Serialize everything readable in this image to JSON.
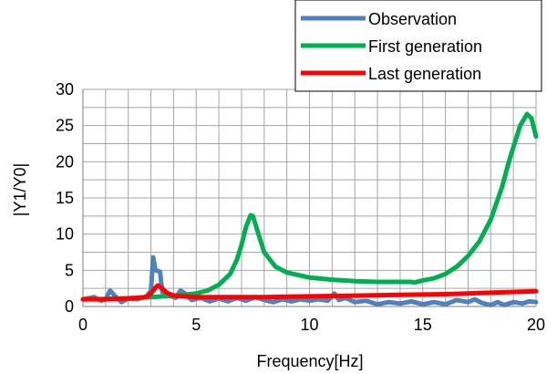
{
  "chart_data": {
    "type": "line",
    "xlabel": "Frequency[Hz]",
    "ylabel": "|Y1/Y0|",
    "xlim": [
      0,
      20
    ],
    "ylim": [
      0,
      30
    ],
    "xticks": [
      0,
      5,
      10,
      15,
      20
    ],
    "yticks": [
      0,
      5,
      10,
      15,
      20,
      25,
      30
    ],
    "grid": true,
    "legend_position": "top-right",
    "series": [
      {
        "name": "Observation",
        "color": "#4f81bd",
        "points": [
          [
            0,
            1.0
          ],
          [
            0.5,
            1.3
          ],
          [
            0.8,
            0.8
          ],
          [
            1.0,
            1.0
          ],
          [
            1.2,
            2.2
          ],
          [
            1.4,
            1.5
          ],
          [
            1.7,
            0.6
          ],
          [
            2.0,
            1.1
          ],
          [
            2.4,
            1.0
          ],
          [
            2.8,
            1.4
          ],
          [
            3.0,
            2.2
          ],
          [
            3.1,
            6.8
          ],
          [
            3.2,
            5.0
          ],
          [
            3.4,
            4.8
          ],
          [
            3.5,
            2.0
          ],
          [
            3.8,
            1.5
          ],
          [
            4.1,
            1.2
          ],
          [
            4.3,
            2.2
          ],
          [
            4.5,
            1.8
          ],
          [
            4.8,
            0.9
          ],
          [
            5.2,
            1.2
          ],
          [
            5.6,
            0.7
          ],
          [
            6.0,
            1.1
          ],
          [
            6.4,
            0.7
          ],
          [
            6.8,
            1.2
          ],
          [
            7.2,
            0.8
          ],
          [
            7.6,
            1.3
          ],
          [
            8.0,
            0.9
          ],
          [
            8.4,
            0.6
          ],
          [
            8.8,
            1.0
          ],
          [
            9.2,
            0.7
          ],
          [
            9.6,
            1.0
          ],
          [
            10.0,
            0.8
          ],
          [
            10.4,
            1.0
          ],
          [
            10.8,
            0.8
          ],
          [
            11.1,
            1.8
          ],
          [
            11.3,
            0.9
          ],
          [
            11.6,
            1.2
          ],
          [
            12.0,
            0.6
          ],
          [
            12.5,
            0.8
          ],
          [
            13.0,
            0.3
          ],
          [
            13.5,
            0.6
          ],
          [
            14.0,
            0.4
          ],
          [
            14.5,
            0.7
          ],
          [
            15.0,
            0.3
          ],
          [
            15.5,
            0.6
          ],
          [
            16.0,
            0.3
          ],
          [
            16.5,
            0.9
          ],
          [
            17.0,
            0.6
          ],
          [
            17.3,
            1.0
          ],
          [
            17.6,
            0.5
          ],
          [
            18.0,
            0.2
          ],
          [
            18.3,
            0.6
          ],
          [
            18.6,
            0.2
          ],
          [
            19.0,
            0.6
          ],
          [
            19.4,
            0.4
          ],
          [
            19.7,
            0.7
          ],
          [
            20.0,
            0.6
          ]
        ]
      },
      {
        "name": "First generation",
        "color": "#00b050",
        "points": [
          [
            0,
            1.0
          ],
          [
            1.0,
            1.05
          ],
          [
            2.0,
            1.15
          ],
          [
            3.0,
            1.3
          ],
          [
            4.0,
            1.5
          ],
          [
            5.0,
            1.8
          ],
          [
            5.5,
            2.2
          ],
          [
            6.0,
            3.0
          ],
          [
            6.5,
            4.5
          ],
          [
            6.8,
            6.5
          ],
          [
            7.0,
            8.5
          ],
          [
            7.2,
            11.0
          ],
          [
            7.4,
            12.6
          ],
          [
            7.5,
            12.5
          ],
          [
            7.7,
            10.5
          ],
          [
            8.0,
            7.5
          ],
          [
            8.5,
            5.5
          ],
          [
            9.0,
            4.7
          ],
          [
            10.0,
            4.0
          ],
          [
            11.0,
            3.7
          ],
          [
            12.0,
            3.5
          ],
          [
            13.0,
            3.4
          ],
          [
            14.0,
            3.4
          ],
          [
            14.5,
            3.4
          ],
          [
            14.6,
            3.3
          ],
          [
            15.0,
            3.6
          ],
          [
            15.5,
            3.9
          ],
          [
            16.0,
            4.5
          ],
          [
            16.5,
            5.5
          ],
          [
            17.0,
            7.0
          ],
          [
            17.5,
            9.0
          ],
          [
            18.0,
            12.0
          ],
          [
            18.5,
            16.5
          ],
          [
            18.8,
            20.0
          ],
          [
            19.0,
            22.0
          ],
          [
            19.3,
            25.0
          ],
          [
            19.6,
            26.6
          ],
          [
            19.8,
            26.0
          ],
          [
            20.0,
            23.5
          ]
        ]
      },
      {
        "name": "Last generation",
        "color": "#ff0000",
        "points": [
          [
            0,
            1.0
          ],
          [
            1.0,
            1.0
          ],
          [
            2.0,
            1.1
          ],
          [
            2.8,
            1.3
          ],
          [
            3.0,
            1.8
          ],
          [
            3.2,
            2.6
          ],
          [
            3.3,
            2.9
          ],
          [
            3.5,
            2.5
          ],
          [
            3.7,
            1.9
          ],
          [
            4.0,
            1.5
          ],
          [
            5.0,
            1.3
          ],
          [
            6.0,
            1.3
          ],
          [
            8.0,
            1.3
          ],
          [
            10.0,
            1.4
          ],
          [
            12.0,
            1.5
          ],
          [
            14.0,
            1.6
          ],
          [
            16.0,
            1.7
          ],
          [
            18.0,
            1.9
          ],
          [
            20.0,
            2.1
          ]
        ]
      }
    ]
  }
}
